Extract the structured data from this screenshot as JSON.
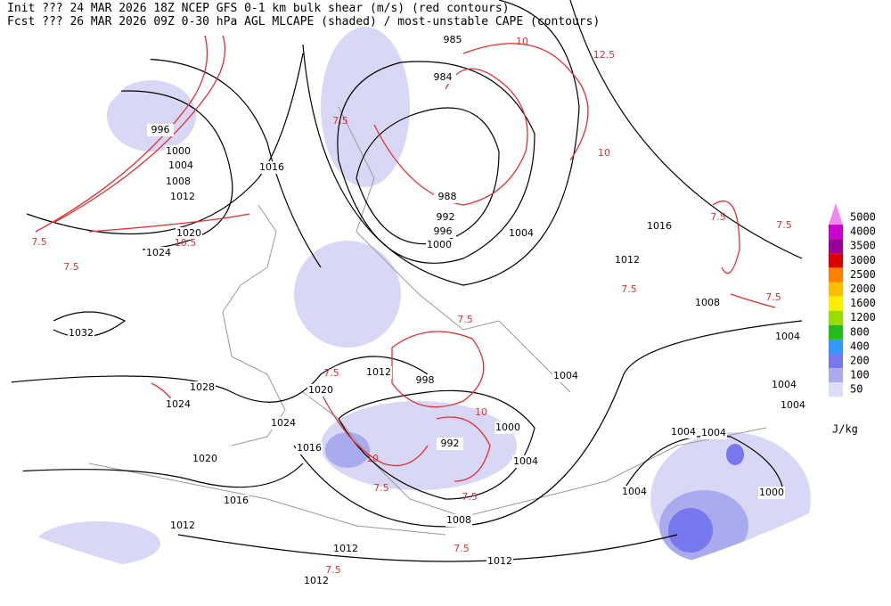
{
  "header": {
    "line1": "Init  ??? 24 MAR 2026 18Z  NCEP GFS 0-1 km bulk shear (m/s) (red contours)",
    "line2": "Fcst ??? 26 MAR 2026 09Z  0-30 hPa AGL MLCAPE (shaded) / most-unstable CAPE (contours)"
  },
  "colorbar": {
    "levels": [
      5000,
      4000,
      3500,
      3000,
      2500,
      2000,
      1600,
      1200,
      800,
      400,
      200,
      100,
      50
    ],
    "colors": [
      "#ee88ee",
      "#cc00cc",
      "#990099",
      "#dd0000",
      "#ff7f00",
      "#ffbf00",
      "#ffee00",
      "#99dd00",
      "#22bb22",
      "#3399ff",
      "#7777ee",
      "#aaaaee",
      "#ddddf8"
    ],
    "unit": "J/kg"
  },
  "isobar_labels": [
    985,
    984,
    996,
    1000,
    1004,
    1008,
    1012,
    1016,
    988,
    992,
    996,
    1000,
    1004,
    1016,
    1020,
    1024,
    1012,
    1008,
    1032,
    1004,
    1028,
    1024,
    1012,
    1020,
    998,
    1004,
    1004,
    1004,
    1024,
    1000,
    1016,
    1004,
    1004,
    992,
    1020,
    1004,
    1004,
    1000,
    1016,
    1008,
    1012,
    1012,
    1012,
    1012
  ],
  "shear_labels": [
    7.5,
    10.5,
    7.5,
    7.5,
    7.5,
    7.5,
    7.5,
    10,
    12.5,
    10,
    7.5,
    7.5,
    10,
    7.5,
    7.5,
    7.5,
    7.5,
    10,
    7.5
  ]
}
